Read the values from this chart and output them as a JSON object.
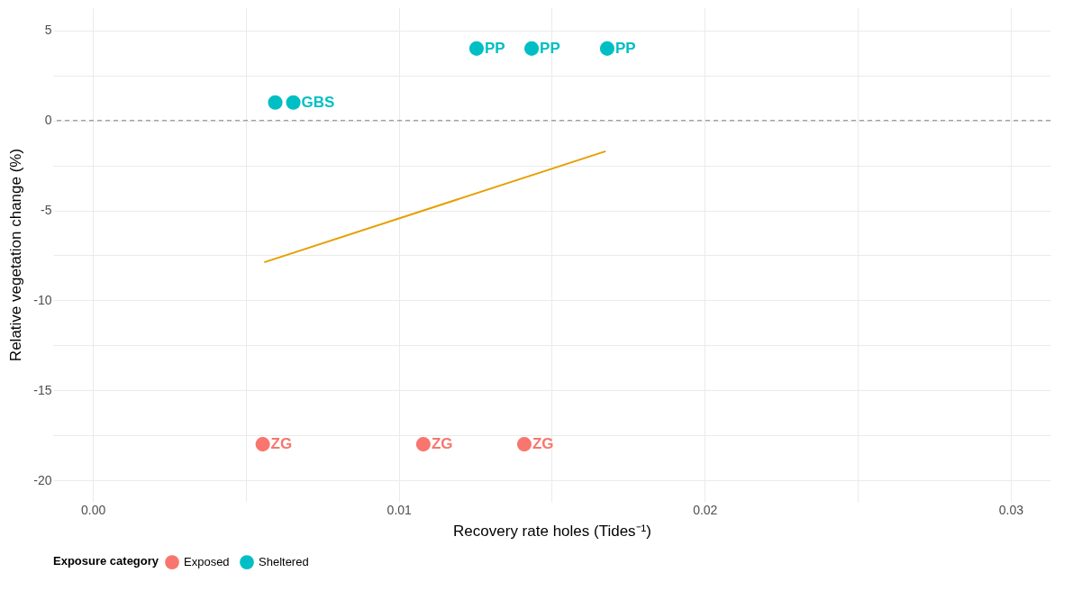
{
  "chart_data": {
    "type": "scatter",
    "xlabel": "Recovery rate holes (Tides⁻¹)",
    "ylabel": "Relative vegetation change (%)",
    "legend_title": "Exposure category",
    "legend": "bottom",
    "grid": true,
    "marker": "circle",
    "xlim": [
      -0.0013,
      0.0313
    ],
    "ylim": [
      -21.2,
      6.3
    ],
    "xticks": [
      {
        "value": 0,
        "label": "0.00"
      },
      {
        "value": 0.005,
        "label": null
      },
      0.01,
      {
        "value": 0.015,
        "label": null
      },
      0.02,
      {
        "value": 0.025,
        "label": null
      },
      0.03
    ],
    "yticks": [
      -20,
      {
        "value": -17.5,
        "label": null
      },
      -15,
      {
        "value": -12.5,
        "label": null
      },
      -10,
      {
        "value": -7.5,
        "label": null
      },
      -5,
      {
        "value": -2.5,
        "label": null
      },
      0,
      {
        "value": 2.5,
        "label": null
      },
      5
    ],
    "ref_lines": [
      {
        "axis": "y",
        "value": 0,
        "color": "#808080",
        "line_style": "dashed"
      }
    ],
    "series": [
      {
        "name": "Exposed",
        "color": "#f8766d",
        "x": [
          0.00555,
          0.0108,
          0.0141
        ],
        "values": [
          -18,
          -18,
          -18
        ],
        "value_labels": [
          "ZG",
          "ZG",
          "ZG"
        ]
      },
      {
        "name": "Sheltered",
        "color": "#00bfc4",
        "x": [
          0.00596,
          0.00655,
          0.01254,
          0.01434,
          0.01681
        ],
        "values": [
          1,
          1,
          4,
          4,
          4
        ],
        "value_labels": [
          null,
          "GBS",
          "PP",
          "PP",
          "PP"
        ]
      },
      {
        "type": "line",
        "marker": "none",
        "color": "#e69f00",
        "x": [
          0.0056,
          0.01676
        ],
        "values": [
          -7.88,
          -1.71
        ]
      }
    ]
  }
}
